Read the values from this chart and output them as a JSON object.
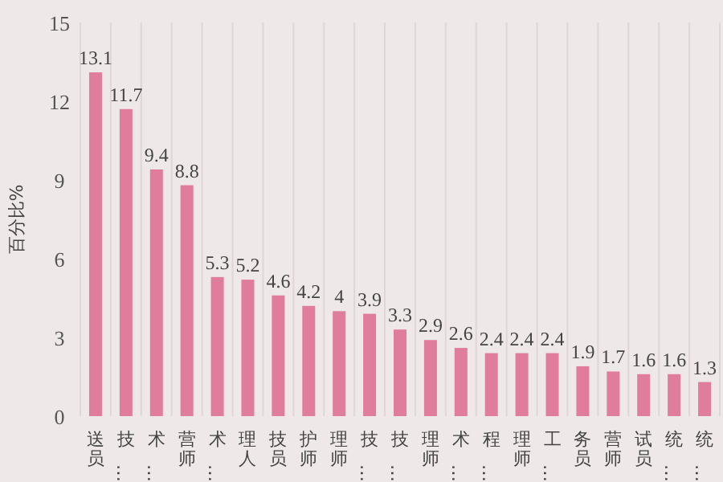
{
  "chart_data": {
    "type": "bar",
    "ylabel": "百分比%",
    "categories": [
      "送员",
      "技…",
      "术…",
      "营师",
      "术…",
      "理人",
      "技员",
      "护师",
      "理师",
      "技…",
      "技…",
      "理师",
      "术…",
      "程…",
      "理师",
      "工…",
      "务员",
      "营师",
      "试员",
      "统…",
      "统…"
    ],
    "values": [
      13.1,
      11.7,
      9.4,
      8.8,
      5.3,
      5.2,
      4.6,
      4.2,
      4,
      3.9,
      3.3,
      2.9,
      2.6,
      2.4,
      2.4,
      2.4,
      1.9,
      1.7,
      1.6,
      1.6,
      1.3
    ],
    "color": "#e07c9c",
    "ylim": [
      0,
      15
    ],
    "yticks": [
      0,
      3,
      6,
      9,
      12,
      15
    ],
    "grid": "x",
    "data_labels": true
  }
}
